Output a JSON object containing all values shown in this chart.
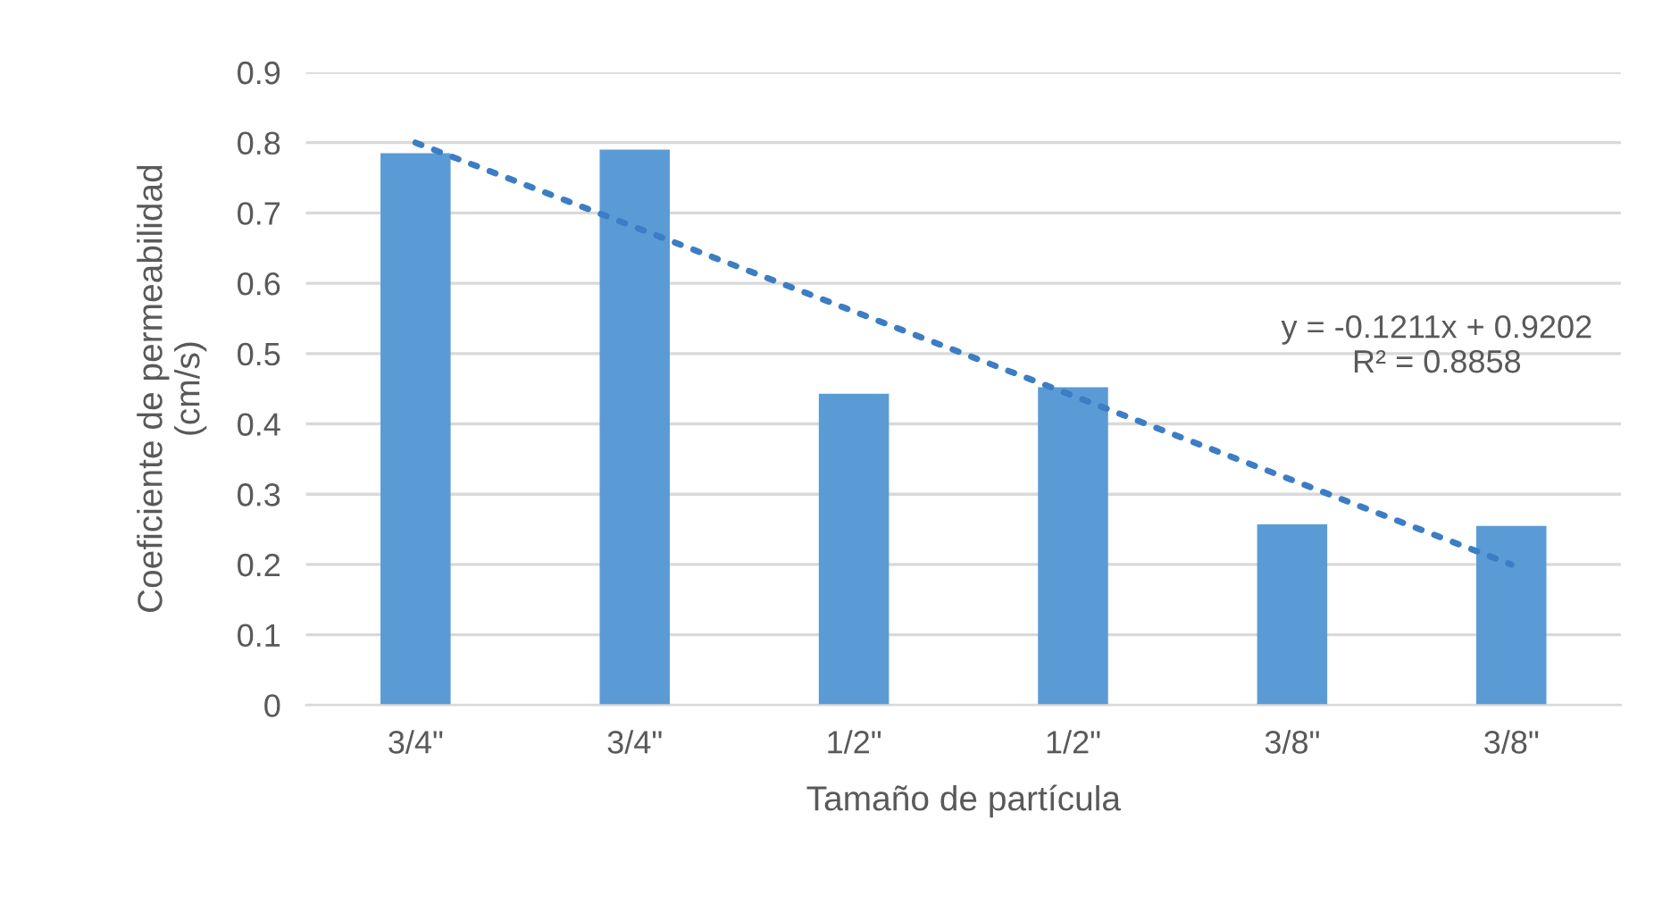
{
  "chart_data": {
    "type": "bar",
    "xlabel": "Tamaño de partícula",
    "ylabel": "Coeficiente de permeabilidad\n(cm/s)",
    "categories": [
      "3/4\"",
      "3/4\"",
      "1/2\"",
      "1/2\"",
      "3/8\"",
      "3/8\""
    ],
    "series": [
      {
        "color": "#5b9bd5",
        "values": [
          0.785,
          0.79,
          0.443,
          0.452,
          0.257,
          0.255
        ]
      },
      {
        "type": "line",
        "color": "#3c7dc4",
        "line_style": "dotted",
        "values": [
          0.8,
          0.68,
          0.56,
          0.44,
          0.32,
          0.2
        ]
      }
    ],
    "annotations": [
      "y = -0.1211x + 0.9202\nR² = 0.8858"
    ],
    "ylim": [
      0,
      0.9
    ],
    "yticks": [
      0,
      0.1,
      0.2,
      0.3,
      0.4,
      0.5,
      0.6,
      0.7,
      0.8,
      0.9
    ],
    "grid": "y",
    "legend": false
  }
}
